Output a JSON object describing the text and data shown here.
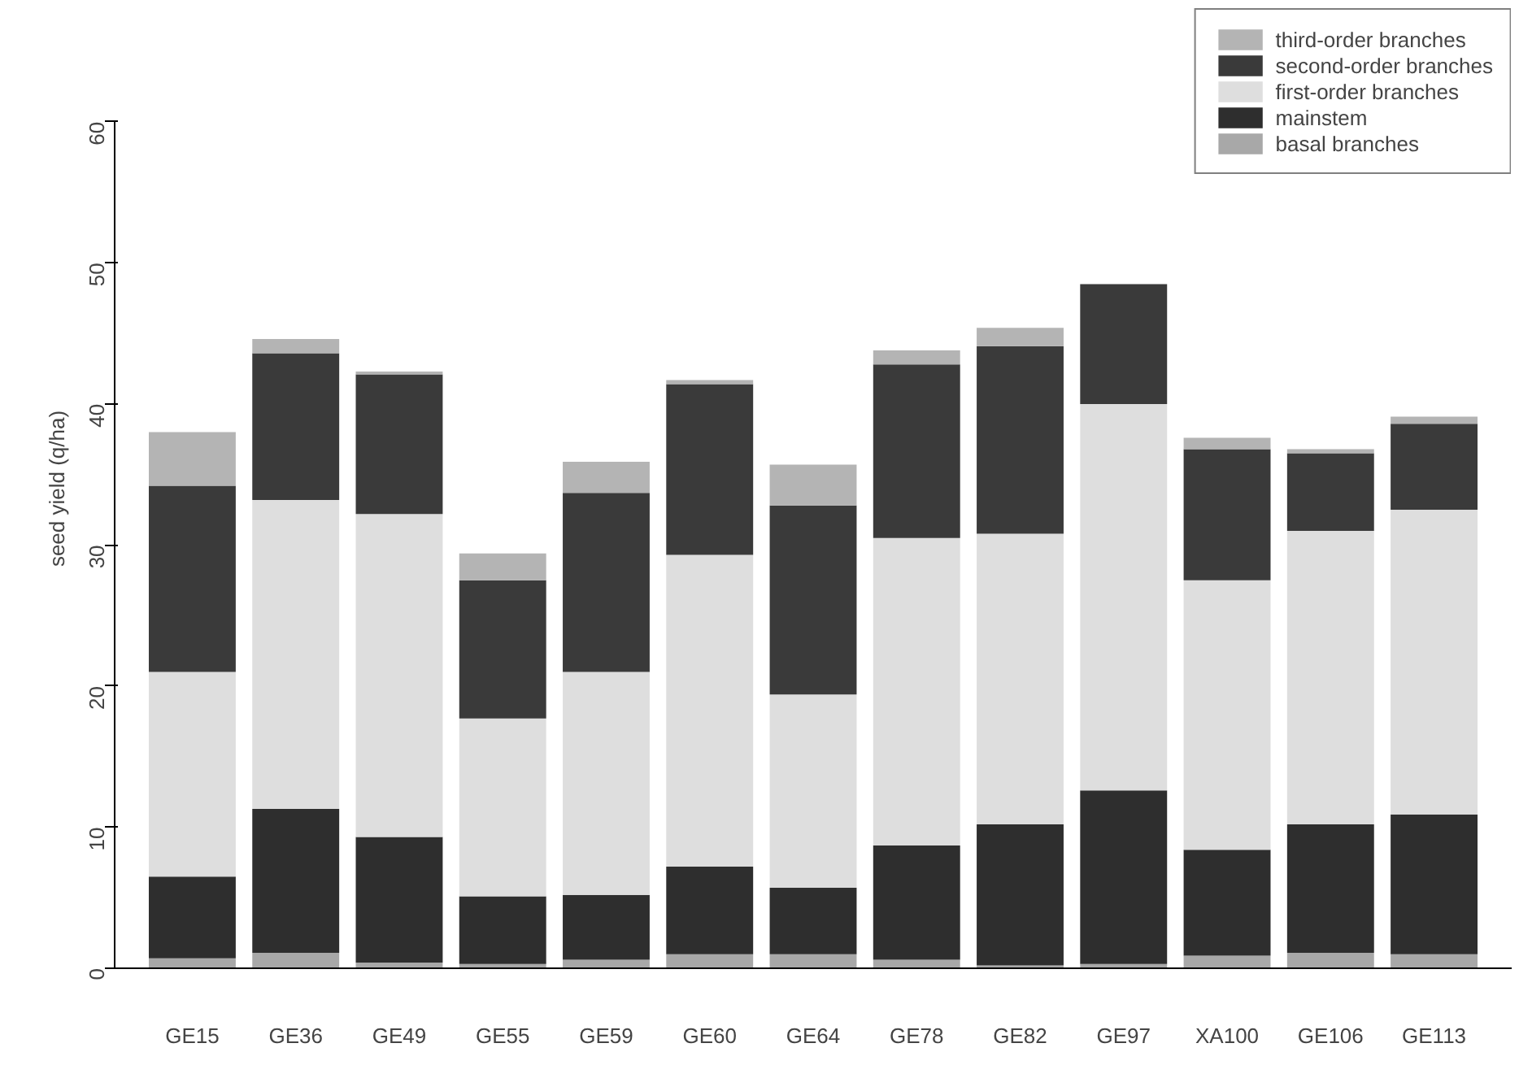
{
  "chart_data": {
    "type": "bar",
    "stacked": true,
    "ylabel": "seed yield (q/ha)",
    "categories": [
      "GE15",
      "GE36",
      "GE49",
      "GE55",
      "GE59",
      "GE60",
      "GE64",
      "GE78",
      "GE82",
      "GE97",
      "XA100",
      "GE106",
      "GE113"
    ],
    "series": [
      {
        "name": "basal branches",
        "color": "#a8a8a8",
        "values": [
          0.7,
          1.1,
          0.4,
          0.3,
          0.6,
          1.0,
          1.0,
          0.6,
          0.2,
          0.3,
          0.9,
          1.1,
          1.0
        ]
      },
      {
        "name": "mainstem",
        "color": "#2e2e2e",
        "values": [
          5.8,
          10.2,
          8.9,
          4.8,
          4.6,
          6.2,
          4.7,
          8.1,
          10.0,
          12.3,
          7.5,
          9.1,
          9.9
        ]
      },
      {
        "name": "first-order branches",
        "color": "#dedede",
        "values": [
          14.5,
          21.9,
          22.9,
          12.6,
          15.8,
          22.1,
          13.7,
          21.8,
          20.6,
          27.4,
          19.1,
          20.8,
          21.6
        ]
      },
      {
        "name": "second-order branches",
        "color": "#3a3a3a",
        "values": [
          13.2,
          10.4,
          9.9,
          9.8,
          12.7,
          12.1,
          13.4,
          12.3,
          13.3,
          8.5,
          9.3,
          5.5,
          6.1
        ]
      },
      {
        "name": "third-order branches",
        "color": "#b4b4b4",
        "values": [
          3.8,
          1.0,
          0.2,
          1.9,
          2.2,
          0.3,
          2.9,
          1.0,
          1.3,
          null,
          0.8,
          0.3,
          0.5
        ]
      }
    ],
    "ylim": [
      0,
      68
    ],
    "yticks": [
      0,
      10,
      20,
      30,
      40,
      50,
      60
    ],
    "grid": false,
    "legend": "top right"
  }
}
